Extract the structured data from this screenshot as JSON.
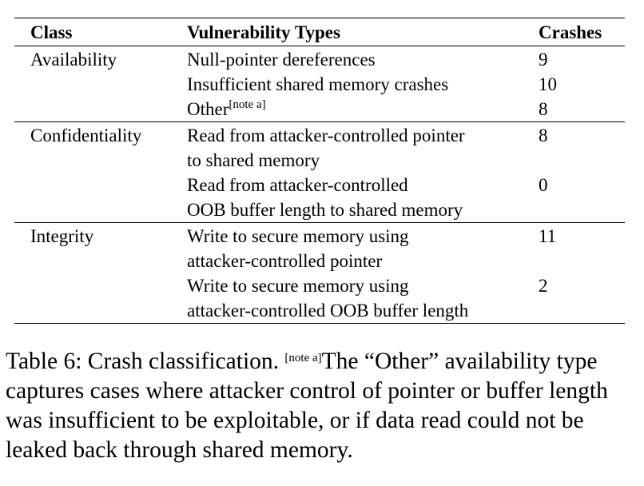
{
  "table": {
    "headers": [
      "Class",
      "Vulnerability Types",
      "Crashes"
    ],
    "groups": [
      {
        "class": "Availability",
        "rows": [
          {
            "type_lines": [
              "Null-pointer dereferences"
            ],
            "crashes": "9"
          },
          {
            "type_lines": [
              "Insufficient shared memory crashes"
            ],
            "crashes": "10"
          },
          {
            "type_lines": [
              "Other"
            ],
            "note": "[note a]",
            "crashes": "8"
          }
        ]
      },
      {
        "class": "Confidentiality",
        "rows": [
          {
            "type_lines": [
              "Read from attacker-controlled pointer",
              "to shared memory"
            ],
            "crashes": "8"
          },
          {
            "type_lines": [
              "Read from attacker-controlled",
              "OOB buffer length to shared memory"
            ],
            "crashes": "0"
          }
        ]
      },
      {
        "class": "Integrity",
        "rows": [
          {
            "type_lines": [
              "Write to secure memory using",
              "attacker-controlled pointer"
            ],
            "crashes": "11"
          },
          {
            "type_lines": [
              "Write to secure memory using",
              "attacker-controlled OOB buffer length"
            ],
            "crashes": "2"
          }
        ]
      }
    ]
  },
  "caption": {
    "label": "Table 6:",
    "title": "Crash classification.",
    "note_marker": "[note a]",
    "note_text": "The “Other” availability type captures cases where attacker control of pointer or buffer length was insufficient to be exploitable, or if data read could not be leaked back through shared memory."
  }
}
